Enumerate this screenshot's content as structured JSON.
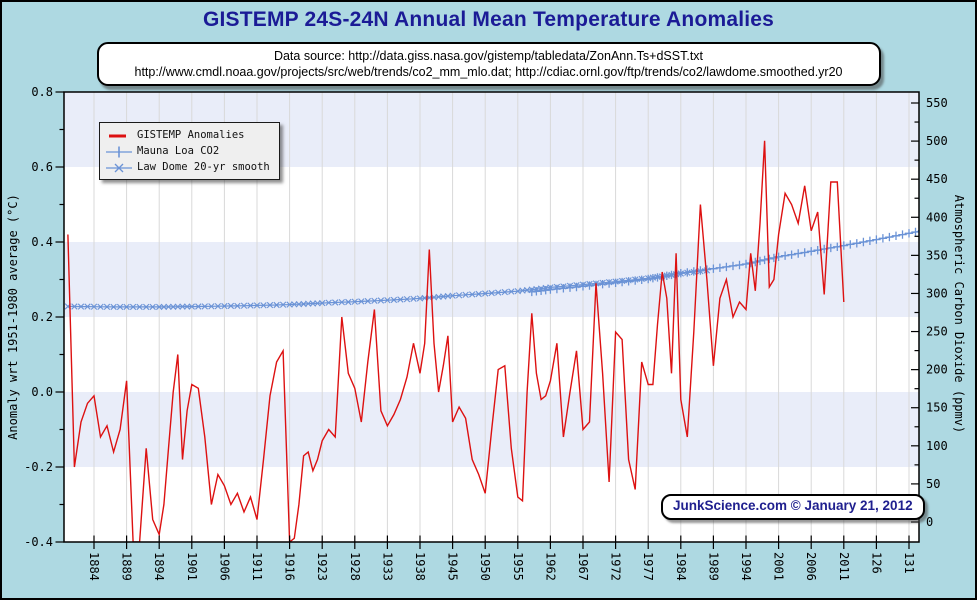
{
  "ui": {
    "title": "GISTEMP 24S-24N Annual Mean Temperature Anomalies",
    "datasource_line1": "Data source: http://data.giss.nasa.gov/gistemp/tabledata/ZonAnn.Ts+dSST.txt",
    "datasource_line2": "http://www.cmdl.noaa.gov/projects/src/web/trends/co2_mm_mlo.dat; http://cdiac.ornl.gov/ftp/trends/co2/lawdome.smoothed.yr20",
    "watermark": "JunkScience.com © January 21, 2012",
    "legend": {
      "items": [
        {
          "label": "GISTEMP Anomalies",
          "marker": "line",
          "color": "#dd1111"
        },
        {
          "label": "Mauna Loa CO2",
          "marker": "plus",
          "color": "#6b93d6"
        },
        {
          "label": "Law Dome 20-yr smooth",
          "marker": "x",
          "color": "#6b93d6"
        }
      ]
    },
    "colors": {
      "background": "#aed9e2",
      "band_pale": "#e9edf9",
      "band_white": "#ffffff",
      "gridline": "#d9d9d9",
      "title_blue": "#1b1b96",
      "anomaly_red": "#dd1111",
      "co2_blue": "#6b93d6"
    }
  },
  "chart_data": {
    "type": "line",
    "title": "GISTEMP 24S-24N Annual Mean Temperature Anomalies",
    "grid": "vertical-only",
    "legend_position": "top-left-inside",
    "x_axis": {
      "tick_labels": [
        "1884",
        "1889",
        "1894",
        "1901",
        "1906",
        "1911",
        "1916",
        "1923",
        "1928",
        "1933",
        "1938",
        "1945",
        "1950",
        "1955",
        "1962",
        "1967",
        "1972",
        "1977",
        "1984",
        "1989",
        "1994",
        "2001",
        "2006",
        "2011",
        "126",
        "131"
      ]
    },
    "y_axis_left": {
      "label": "Anomaly wrt 1951-1980 average (°C)",
      "min": -0.4,
      "max": 0.8,
      "tick_step": 0.2,
      "minor_step": 0.1,
      "tick_labels": [
        "0.8",
        "0.6",
        "0.4",
        "0.2",
        "0.0",
        "-0.2",
        "-0.4"
      ]
    },
    "y_axis_right": {
      "label": "Atmospheric Carbon Dioxide (ppmv)",
      "min": 0,
      "max": 550,
      "tick_step": 50,
      "minor_step": 25,
      "tick_labels": [
        "550",
        "500",
        "450",
        "400",
        "350",
        "300",
        "250",
        "200",
        "150",
        "100",
        "50",
        "0"
      ]
    },
    "series": [
      {
        "name": "GISTEMP Anomalies",
        "axis": "left",
        "color": "#dd1111",
        "marker": "none",
        "start_year": 1880,
        "values": [
          0.42,
          -0.2,
          -0.08,
          -0.03,
          -0.01,
          -0.12,
          -0.09,
          -0.16,
          -0.1,
          0.03,
          -0.4,
          -0.42,
          -0.15,
          -0.34,
          -0.38,
          -0.3,
          -0.15,
          0.0,
          0.1,
          -0.18,
          -0.05,
          0.02,
          0.01,
          -0.12,
          -0.3,
          -0.22,
          -0.25,
          -0.3,
          -0.27,
          -0.32,
          -0.28,
          -0.34,
          -0.18,
          -0.01,
          0.08,
          0.11,
          -0.4,
          -0.39,
          -0.3,
          -0.17,
          -0.16,
          -0.21,
          -0.18,
          -0.13,
          -0.1,
          -0.12,
          0.2,
          0.05,
          0.01,
          -0.08,
          0.08,
          0.22,
          -0.05,
          -0.09,
          -0.06,
          -0.02,
          0.04,
          0.13,
          0.05,
          0.13,
          0.38,
          0.13,
          0.0,
          0.07,
          0.15,
          -0.08,
          -0.04,
          -0.07,
          -0.18,
          -0.22,
          -0.27,
          -0.1,
          0.06,
          0.07,
          -0.15,
          -0.28,
          -0.29,
          0.0,
          0.21,
          0.05,
          -0.02,
          -0.01,
          0.03,
          0.13,
          -0.12,
          0.0,
          0.11,
          -0.1,
          -0.08,
          0.29,
          0.05,
          -0.24,
          0.16,
          0.14,
          -0.18,
          -0.26,
          0.08,
          0.02,
          0.02,
          0.18,
          0.32,
          0.25,
          0.05,
          0.37,
          -0.02,
          -0.12,
          0.16,
          0.5,
          0.3,
          0.07,
          0.25,
          0.3,
          0.2,
          0.24,
          0.22,
          0.37,
          0.27,
          0.45,
          0.67,
          0.28,
          0.3,
          0.42,
          0.53,
          0.5,
          0.45,
          0.55,
          0.43,
          0.48,
          0.26,
          0.56,
          0.56,
          0.24
        ]
      },
      {
        "name": "Mauna Loa CO2",
        "axis": "right",
        "color": "#6b93d6",
        "marker": "plus",
        "start_year": 1958,
        "values": [
          302.0,
          302.8,
          303.5,
          304.3,
          305.1,
          305.9,
          306.8,
          307.6,
          308.5,
          309.4,
          310.3,
          311.2,
          312.1,
          313.0,
          314.0,
          314.9,
          315.9,
          316.9,
          317.9,
          319.0,
          320.0,
          321.1,
          322.1,
          323.2,
          324.3,
          325.4,
          326.6,
          327.7,
          328.9,
          330.1,
          331.3,
          332.5,
          333.7,
          334.9,
          336.2,
          337.4,
          338.7,
          340.0,
          341.3,
          342.7,
          344.0,
          345.4,
          346.7,
          348.1,
          349.5,
          350.9,
          352.4,
          353.8,
          355.3,
          356.8,
          358.3,
          359.8,
          361.3,
          362.8,
          364.4,
          365.9,
          367.5,
          369.1,
          370.7,
          372.4,
          374.0,
          375.7,
          377.3,
          379.0,
          380.7,
          382.4
        ]
      },
      {
        "name": "Law Dome 20-yr smooth",
        "axis": "right",
        "color": "#6b93d6",
        "marker": "x",
        "start_year": 1880,
        "values": [
          283.0,
          282.9,
          282.8,
          282.7,
          282.6,
          282.5,
          282.5,
          282.4,
          282.4,
          282.4,
          282.4,
          282.3,
          282.3,
          282.4,
          282.4,
          282.4,
          282.5,
          282.5,
          282.6,
          282.7,
          282.7,
          282.8,
          282.9,
          283.0,
          283.2,
          283.3,
          283.4,
          283.6,
          283.7,
          283.9,
          284.1,
          284.3,
          284.5,
          284.7,
          284.9,
          285.2,
          285.4,
          285.7,
          285.9,
          286.2,
          286.5,
          286.8,
          287.1,
          287.4,
          287.8,
          288.1,
          288.5,
          288.8,
          289.2,
          289.6,
          290.0,
          290.4,
          290.8,
          291.2,
          291.6,
          292.1,
          292.5,
          293.0,
          293.5,
          294.0,
          294.4,
          294.9,
          295.5,
          296.0,
          296.5,
          297.1,
          297.6,
          298.2,
          298.7,
          299.3,
          299.9,
          300.5,
          301.1,
          301.8,
          302.4,
          303.0,
          303.7,
          304.4,
          305.0,
          305.7,
          306.4,
          307.1,
          307.9,
          308.6,
          309.3,
          310.1,
          310.8,
          311.6,
          312.4,
          313.2,
          314.0,
          314.8,
          315.6,
          316.5,
          317.3,
          318.2,
          319.1,
          319.9,
          320.8,
          321.7,
          322.4,
          323.4,
          324.3,
          325.3,
          326.2,
          327.2,
          328.2,
          329.2,
          330.2
        ]
      }
    ]
  }
}
